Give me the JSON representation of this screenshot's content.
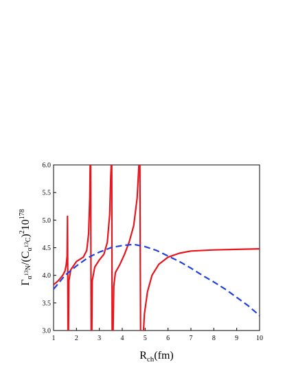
{
  "chart_data": {
    "type": "line",
    "title": "",
    "xlabel": {
      "main": "R",
      "sub": "ch",
      "unit": "(fm)"
    },
    "ylabel": {
      "g": "Γ",
      "g_sub": "α",
      "n_sup": "13",
      "n": "N",
      "slash": "/(C",
      "c_sub": "α",
      "c_sup": "13",
      "c": "C",
      "close": ")",
      "sq": "2",
      "ten": "10",
      "exp": "178"
    },
    "xlim": [
      1,
      10
    ],
    "ylim": [
      3.0,
      6.0
    ],
    "x_ticks": [
      "1",
      "2",
      "3",
      "4",
      "5",
      "6",
      "7",
      "8",
      "9",
      "10"
    ],
    "y_ticks": [
      "3.0",
      "3.5",
      "4.0",
      "4.5",
      "5.0",
      "5.5",
      "6.0"
    ],
    "grid": false,
    "legend": "none",
    "series": [
      {
        "style": "solid",
        "color": "#e8141b",
        "segments": [
          [
            [
              1.0,
              3.83
            ],
            [
              1.2,
              3.9
            ],
            [
              1.4,
              4.0
            ],
            [
              1.5,
              4.08
            ],
            [
              1.55,
              4.18
            ],
            [
              1.59,
              4.35
            ],
            [
              1.61,
              5.07
            ],
            [
              1.63,
              3.0
            ]
          ],
          [
            [
              1.65,
              3.0
            ],
            [
              1.67,
              3.9
            ],
            [
              1.75,
              4.1
            ],
            [
              2.0,
              4.25
            ],
            [
              2.3,
              4.33
            ],
            [
              2.45,
              4.45
            ],
            [
              2.53,
              4.75
            ],
            [
              2.58,
              5.4
            ],
            [
              2.6,
              6.0
            ]
          ],
          [
            [
              2.62,
              6.0
            ],
            [
              2.64,
              3.0
            ]
          ],
          [
            [
              2.67,
              3.0
            ],
            [
              2.69,
              3.9
            ],
            [
              2.8,
              4.15
            ],
            [
              3.0,
              4.28
            ],
            [
              3.2,
              4.38
            ],
            [
              3.35,
              4.6
            ],
            [
              3.45,
              5.1
            ],
            [
              3.5,
              5.8
            ],
            [
              3.52,
              6.0
            ]
          ],
          [
            [
              3.54,
              6.0
            ],
            [
              3.56,
              3.0
            ]
          ],
          [
            [
              3.6,
              3.0
            ],
            [
              3.63,
              3.8
            ],
            [
              3.7,
              4.05
            ],
            [
              3.9,
              4.2
            ],
            [
              4.1,
              4.38
            ],
            [
              4.3,
              4.6
            ],
            [
              4.5,
              4.9
            ],
            [
              4.65,
              5.4
            ],
            [
              4.73,
              6.0
            ]
          ],
          [
            [
              4.77,
              6.0
            ],
            [
              4.8,
              3.0
            ]
          ],
          [
            [
              4.93,
              3.0
            ],
            [
              4.97,
              3.3
            ],
            [
              5.1,
              3.7
            ],
            [
              5.3,
              4.0
            ],
            [
              5.6,
              4.2
            ],
            [
              6.0,
              4.33
            ],
            [
              6.5,
              4.4
            ],
            [
              7.0,
              4.44
            ],
            [
              8.0,
              4.46
            ],
            [
              9.0,
              4.47
            ],
            [
              10.0,
              4.48
            ]
          ]
        ]
      },
      {
        "style": "dashed",
        "color": "#1f3fe0",
        "segments": [
          [
            [
              1.0,
              3.75
            ],
            [
              1.5,
              4.0
            ],
            [
              2.0,
              4.17
            ],
            [
              2.5,
              4.32
            ],
            [
              3.0,
              4.42
            ],
            [
              3.5,
              4.5
            ],
            [
              4.0,
              4.54
            ],
            [
              4.5,
              4.56
            ],
            [
              5.0,
              4.52
            ],
            [
              5.5,
              4.45
            ],
            [
              6.0,
              4.35
            ],
            [
              6.5,
              4.25
            ],
            [
              7.0,
              4.13
            ],
            [
              7.5,
              4.0
            ],
            [
              8.0,
              3.88
            ],
            [
              8.5,
              3.75
            ],
            [
              9.0,
              3.6
            ],
            [
              9.5,
              3.45
            ],
            [
              10.0,
              3.27
            ]
          ]
        ]
      }
    ]
  },
  "colors": {
    "axis": "#000000",
    "curve_solid": "#e8141b",
    "curve_dashed": "#1f3fe0"
  }
}
